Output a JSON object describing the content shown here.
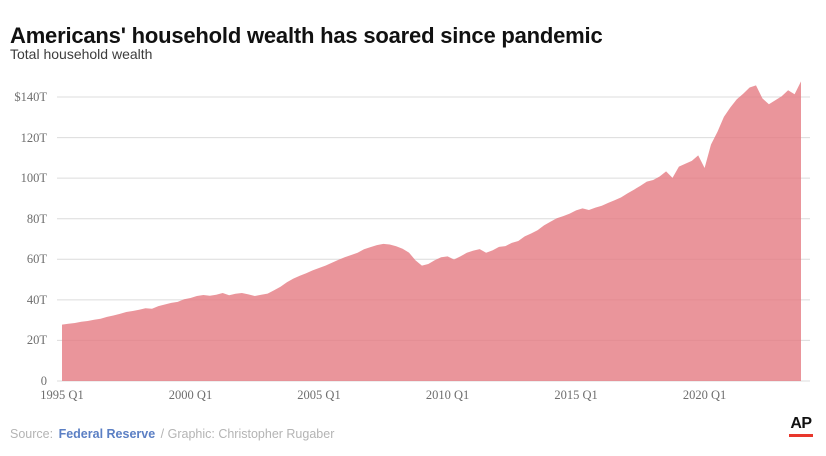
{
  "header": {
    "title": "Americans' household wealth has soared since pandemic",
    "subtitle": "Total household wealth"
  },
  "chart_data": {
    "type": "area",
    "title": "Total household wealth",
    "xlabel": "",
    "ylabel": "",
    "unit": "trillion USD",
    "frequency": "quarterly",
    "xlim": [
      "1995 Q1",
      "2023 Q4"
    ],
    "ylim": [
      0,
      140
    ],
    "grid": true,
    "area_color": "#e57a82",
    "area_opacity": 0.8,
    "grid_color": "#dcdcdc",
    "tick_color": "#6e6e6e",
    "y_ticks": [
      {
        "value": 0,
        "label": "0"
      },
      {
        "value": 20,
        "label": "20T"
      },
      {
        "value": 40,
        "label": "40T"
      },
      {
        "value": 60,
        "label": "60T"
      },
      {
        "value": 80,
        "label": "80T"
      },
      {
        "value": 100,
        "label": "100T"
      },
      {
        "value": 120,
        "label": "120T"
      },
      {
        "value": 140,
        "label": "$140T"
      }
    ],
    "x_ticks": [
      {
        "index": 0,
        "label": "1995 Q1"
      },
      {
        "index": 20,
        "label": "2000 Q1"
      },
      {
        "index": 40,
        "label": "2005 Q1"
      },
      {
        "index": 60,
        "label": "2010 Q1"
      },
      {
        "index": 80,
        "label": "2015 Q1"
      },
      {
        "index": 100,
        "label": "2020 Q1"
      }
    ],
    "values": [
      27.8,
      28.2,
      28.6,
      29.2,
      29.6,
      30.2,
      30.7,
      31.6,
      32.3,
      33.1,
      34.0,
      34.5,
      35.1,
      35.9,
      35.6,
      36.9,
      37.7,
      38.5,
      39.0,
      40.3,
      40.9,
      41.9,
      42.4,
      42.0,
      42.5,
      43.4,
      42.3,
      43.0,
      43.4,
      42.7,
      41.9,
      42.5,
      43.1,
      44.7,
      46.5,
      48.7,
      50.5,
      51.9,
      53.1,
      54.5,
      55.7,
      56.9,
      58.3,
      59.7,
      61.0,
      62.1,
      63.2,
      64.9,
      66.0,
      67.0,
      67.6,
      67.3,
      66.4,
      65.2,
      63.3,
      59.5,
      56.9,
      57.7,
      59.5,
      61.0,
      61.4,
      59.9,
      61.4,
      63.2,
      64.3,
      65.0,
      63.2,
      64.4,
      66.1,
      66.5,
      68.1,
      69.0,
      71.3,
      72.7,
      74.3,
      76.7,
      78.5,
      80.2,
      81.3,
      82.5,
      84.1,
      85.1,
      84.3,
      85.5,
      86.4,
      87.8,
      89.1,
      90.5,
      92.5,
      94.3,
      96.2,
      98.3,
      99.1,
      100.8,
      103.3,
      100.1,
      105.7,
      107.1,
      108.5,
      111.2,
      105.0,
      116.6,
      122.9,
      130.2,
      134.8,
      138.8,
      141.6,
      144.7,
      145.7,
      139.3,
      136.4,
      138.4,
      140.4,
      143.3,
      141.4,
      147.7
    ]
  },
  "footer": {
    "source_prefix": "Source:",
    "source_link": "Federal Reserve",
    "credit": "/ Graphic: Christopher Rugaber",
    "link_color": "#5b7fc4",
    "ap_logo": "AP",
    "ap_bar_color": "#e8372c"
  }
}
